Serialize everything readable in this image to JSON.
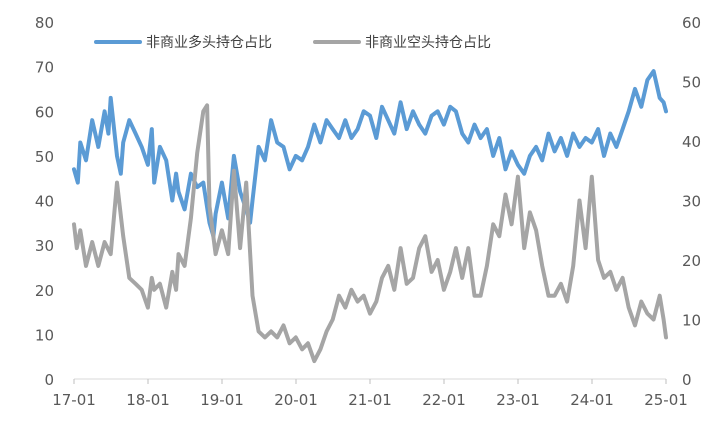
{
  "chart_data": {
    "type": "line",
    "x_ticks": [
      "17-01",
      "18-01",
      "19-01",
      "20-01",
      "21-01",
      "22-01",
      "23-01",
      "24-01",
      "25-01"
    ],
    "y_left_ticks": [
      "0",
      "10",
      "20",
      "30",
      "40",
      "50",
      "60",
      "70",
      "80"
    ],
    "y_right_ticks": [
      "0",
      "10",
      "20",
      "30",
      "40",
      "50",
      "60"
    ],
    "ylim_left": [
      0,
      80
    ],
    "ylim_right": [
      0,
      60
    ],
    "legend_position": "top-left",
    "grid": false,
    "series": [
      {
        "name": "非商业多头持仓占比",
        "axis": "left",
        "color": "#5B9BD5",
        "points": [
          [
            "2017-01",
            47
          ],
          [
            "2017-01-20",
            44
          ],
          [
            "2017-02",
            53
          ],
          [
            "2017-03",
            49
          ],
          [
            "2017-04",
            58
          ],
          [
            "2017-05",
            52
          ],
          [
            "2017-06",
            60
          ],
          [
            "2017-06-20",
            55
          ],
          [
            "2017-07",
            63
          ],
          [
            "2017-08",
            50
          ],
          [
            "2017-08-20",
            46
          ],
          [
            "2017-09",
            53
          ],
          [
            "2017-10",
            58
          ],
          [
            "2017-11",
            55
          ],
          [
            "2017-12",
            52
          ],
          [
            "2018-01",
            48
          ],
          [
            "2018-01-20",
            56
          ],
          [
            "2018-02",
            44
          ],
          [
            "2018-03",
            52
          ],
          [
            "2018-04",
            49
          ],
          [
            "2018-05",
            40
          ],
          [
            "2018-05-20",
            46
          ],
          [
            "2018-06",
            42
          ],
          [
            "2018-07",
            38
          ],
          [
            "2018-08",
            46
          ],
          [
            "2018-09",
            43
          ],
          [
            "2018-10",
            44
          ],
          [
            "2018-11",
            35
          ],
          [
            "2018-11-20",
            32
          ],
          [
            "2018-12",
            37
          ],
          [
            "2019-01",
            44
          ],
          [
            "2019-02",
            36
          ],
          [
            "2019-03",
            50
          ],
          [
            "2019-04",
            42
          ],
          [
            "2019-05",
            38
          ],
          [
            "2019-05-20",
            35
          ],
          [
            "2019-06",
            40
          ],
          [
            "2019-07",
            52
          ],
          [
            "2019-08",
            49
          ],
          [
            "2019-09",
            58
          ],
          [
            "2019-10",
            53
          ],
          [
            "2019-11",
            52
          ],
          [
            "2019-12",
            47
          ],
          [
            "2020-01",
            50
          ],
          [
            "2020-02",
            49
          ],
          [
            "2020-03",
            52
          ],
          [
            "2020-04",
            57
          ],
          [
            "2020-05",
            53
          ],
          [
            "2020-06",
            58
          ],
          [
            "2020-07",
            56
          ],
          [
            "2020-08",
            54
          ],
          [
            "2020-09",
            58
          ],
          [
            "2020-10",
            54
          ],
          [
            "2020-11",
            56
          ],
          [
            "2020-12",
            60
          ],
          [
            "2021-01",
            59
          ],
          [
            "2021-02",
            54
          ],
          [
            "2021-03",
            61
          ],
          [
            "2021-04",
            58
          ],
          [
            "2021-05",
            55
          ],
          [
            "2021-06",
            62
          ],
          [
            "2021-07",
            56
          ],
          [
            "2021-08",
            60
          ],
          [
            "2021-09",
            57
          ],
          [
            "2021-10",
            55
          ],
          [
            "2021-11",
            59
          ],
          [
            "2021-12",
            60
          ],
          [
            "2022-01",
            57
          ],
          [
            "2022-02",
            61
          ],
          [
            "2022-03",
            60
          ],
          [
            "2022-04",
            55
          ],
          [
            "2022-05",
            53
          ],
          [
            "2022-06",
            57
          ],
          [
            "2022-07",
            54
          ],
          [
            "2022-08",
            56
          ],
          [
            "2022-09",
            50
          ],
          [
            "2022-10",
            54
          ],
          [
            "2022-11",
            47
          ],
          [
            "2022-12",
            51
          ],
          [
            "2023-01",
            48
          ],
          [
            "2023-02",
            46
          ],
          [
            "2023-03",
            50
          ],
          [
            "2023-04",
            52
          ],
          [
            "2023-05",
            49
          ],
          [
            "2023-06",
            55
          ],
          [
            "2023-07",
            51
          ],
          [
            "2023-08",
            54
          ],
          [
            "2023-09",
            50
          ],
          [
            "2023-10",
            55
          ],
          [
            "2023-11",
            52
          ],
          [
            "2023-12",
            54
          ],
          [
            "2024-01",
            53
          ],
          [
            "2024-02",
            56
          ],
          [
            "2024-03",
            50
          ],
          [
            "2024-04",
            55
          ],
          [
            "2024-05",
            52
          ],
          [
            "2024-06",
            56
          ],
          [
            "2024-07",
            60
          ],
          [
            "2024-08",
            65
          ],
          [
            "2024-09",
            61
          ],
          [
            "2024-10",
            67
          ],
          [
            "2024-11",
            69
          ],
          [
            "2024-12",
            63
          ],
          [
            "2024-12-20",
            62
          ],
          [
            "2025-01",
            60
          ]
        ]
      },
      {
        "name": "非商业空头持仓占比",
        "axis": "right",
        "color": "#A5A5A5",
        "points": [
          [
            "2017-01",
            26
          ],
          [
            "2017-01-15",
            22
          ],
          [
            "2017-02",
            25
          ],
          [
            "2017-03",
            19
          ],
          [
            "2017-04",
            23
          ],
          [
            "2017-05",
            19
          ],
          [
            "2017-06",
            23
          ],
          [
            "2017-07",
            21
          ],
          [
            "2017-08",
            33
          ],
          [
            "2017-09",
            24
          ],
          [
            "2017-10",
            17
          ],
          [
            "2017-11",
            16
          ],
          [
            "2017-12",
            15
          ],
          [
            "2018-01",
            12
          ],
          [
            "2018-01-20",
            17
          ],
          [
            "2018-02",
            15
          ],
          [
            "2018-03",
            16
          ],
          [
            "2018-04",
            12
          ],
          [
            "2018-05",
            18
          ],
          [
            "2018-05-20",
            15
          ],
          [
            "2018-06",
            21
          ],
          [
            "2018-07",
            19
          ],
          [
            "2018-08",
            27
          ],
          [
            "2018-09",
            38
          ],
          [
            "2018-10",
            45
          ],
          [
            "2018-10-20",
            46
          ],
          [
            "2018-11",
            29
          ],
          [
            "2018-12",
            21
          ],
          [
            "2019-01",
            25
          ],
          [
            "2019-02",
            21
          ],
          [
            "2019-03",
            35
          ],
          [
            "2019-04",
            22
          ],
          [
            "2019-05",
            33
          ],
          [
            "2019-06",
            14
          ],
          [
            "2019-07",
            8
          ],
          [
            "2019-08",
            7
          ],
          [
            "2019-09",
            8
          ],
          [
            "2019-10",
            7
          ],
          [
            "2019-11",
            9
          ],
          [
            "2019-12",
            6
          ],
          [
            "2020-01",
            7
          ],
          [
            "2020-02",
            5
          ],
          [
            "2020-03",
            6
          ],
          [
            "2020-04",
            3
          ],
          [
            "2020-05",
            5
          ],
          [
            "2020-06",
            8
          ],
          [
            "2020-07",
            10
          ],
          [
            "2020-08",
            14
          ],
          [
            "2020-09",
            12
          ],
          [
            "2020-10",
            15
          ],
          [
            "2020-11",
            13
          ],
          [
            "2020-12",
            14
          ],
          [
            "2021-01",
            11
          ],
          [
            "2021-02",
            13
          ],
          [
            "2021-03",
            17
          ],
          [
            "2021-04",
            19
          ],
          [
            "2021-05",
            15
          ],
          [
            "2021-06",
            22
          ],
          [
            "2021-07",
            16
          ],
          [
            "2021-08",
            17
          ],
          [
            "2021-09",
            22
          ],
          [
            "2021-10",
            24
          ],
          [
            "2021-11",
            18
          ],
          [
            "2021-12",
            20
          ],
          [
            "2022-01",
            15
          ],
          [
            "2022-02",
            18
          ],
          [
            "2022-03",
            22
          ],
          [
            "2022-04",
            17
          ],
          [
            "2022-05",
            22
          ],
          [
            "2022-06",
            14
          ],
          [
            "2022-07",
            14
          ],
          [
            "2022-08",
            19
          ],
          [
            "2022-09",
            26
          ],
          [
            "2022-10",
            24
          ],
          [
            "2022-11",
            31
          ],
          [
            "2022-12",
            26
          ],
          [
            "2023-01",
            34
          ],
          [
            "2023-02",
            22
          ],
          [
            "2023-03",
            28
          ],
          [
            "2023-04",
            25
          ],
          [
            "2023-05",
            19
          ],
          [
            "2023-06",
            14
          ],
          [
            "2023-07",
            14
          ],
          [
            "2023-08",
            16
          ],
          [
            "2023-09",
            13
          ],
          [
            "2023-10",
            19
          ],
          [
            "2023-11",
            30
          ],
          [
            "2023-12",
            22
          ],
          [
            "2024-01",
            34
          ],
          [
            "2024-02",
            20
          ],
          [
            "2024-03",
            17
          ],
          [
            "2024-04",
            18
          ],
          [
            "2024-05",
            15
          ],
          [
            "2024-06",
            17
          ],
          [
            "2024-07",
            12
          ],
          [
            "2024-08",
            9
          ],
          [
            "2024-09",
            13
          ],
          [
            "2024-10",
            11
          ],
          [
            "2024-11",
            10
          ],
          [
            "2024-12",
            14
          ],
          [
            "2024-12-20",
            10
          ],
          [
            "2025-01",
            7
          ]
        ]
      }
    ]
  }
}
